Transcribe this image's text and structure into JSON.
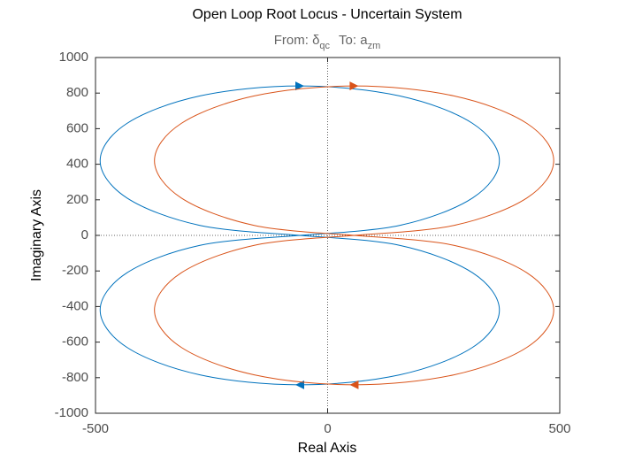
{
  "chart_data": {
    "type": "root-locus",
    "title": "Open Loop Root Locus - Uncertain System",
    "subtitle": [
      "From: δ",
      "qc",
      "To: a",
      "zm"
    ],
    "x_label": "Real Axis",
    "y_label": "Imaginary Axis",
    "xlim": [
      -500,
      500
    ],
    "xticks": [
      -500,
      0,
      500
    ],
    "ylim": [
      -1000,
      1000
    ],
    "yticks": [
      -1000,
      -800,
      -600,
      -400,
      -200,
      0,
      200,
      400,
      600,
      800,
      1000
    ],
    "series": [
      {
        "color": "#0072BD",
        "x": [
          -60,
          -275,
          -432,
          -490,
          -432,
          -275,
          -60,
          155,
          312,
          370,
          312,
          155,
          -60
        ],
        "y": [
          0,
          56,
          210,
          420,
          630,
          784,
          840,
          784,
          630,
          420,
          210,
          56,
          0
        ]
      },
      {
        "color": "#0072BD",
        "x": [
          -60,
          155,
          312,
          370,
          312,
          155,
          -60,
          -275,
          -432,
          -490,
          -432,
          -275,
          -60
        ],
        "y": [
          0,
          -56,
          -210,
          -420,
          -630,
          -784,
          -840,
          -784,
          -630,
          -420,
          -210,
          -56,
          0
        ]
      },
      {
        "color": "#D95319",
        "x": [
          57,
          -158,
          -315,
          -373,
          -315,
          -158,
          57,
          272,
          429,
          487,
          429,
          272,
          57
        ],
        "y": [
          0,
          56,
          210,
          420,
          630,
          784,
          840,
          784,
          630,
          420,
          210,
          56,
          0
        ]
      },
      {
        "color": "#D95319",
        "x": [
          57,
          272,
          429,
          487,
          429,
          272,
          57,
          -158,
          -315,
          -373,
          -315,
          -158,
          57
        ],
        "y": [
          0,
          -56,
          -210,
          -420,
          -630,
          -784,
          -840,
          -784,
          -630,
          -420,
          -210,
          -56,
          0
        ]
      }
    ]
  }
}
